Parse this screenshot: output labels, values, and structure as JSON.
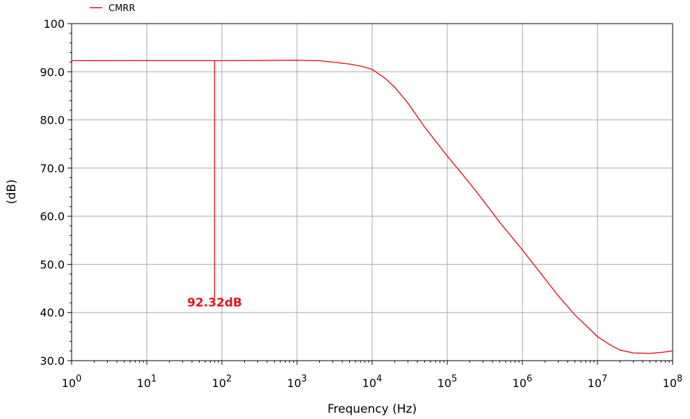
{
  "chart_data": {
    "type": "line",
    "title": "",
    "xlabel": "Frequency (Hz)",
    "ylabel": "(dB)",
    "xscale": "log",
    "xlim": [
      1,
      100000000
    ],
    "ylim": [
      30,
      100
    ],
    "grid": true,
    "legend_position": "top-left",
    "x_tick_labels": [
      {
        "base": "10",
        "exp": "0"
      },
      {
        "base": "10",
        "exp": "1"
      },
      {
        "base": "10",
        "exp": "2"
      },
      {
        "base": "10",
        "exp": "3"
      },
      {
        "base": "10",
        "exp": "4"
      },
      {
        "base": "10",
        "exp": "5"
      },
      {
        "base": "10",
        "exp": "6"
      },
      {
        "base": "10",
        "exp": "7"
      },
      {
        "base": "10",
        "exp": "8"
      }
    ],
    "y_tick_labels": [
      "30.0",
      "40.0",
      "50.0",
      "60.0",
      "70.0",
      "80.0",
      "90.0",
      "100"
    ],
    "y_tick_values": [
      30,
      40,
      50,
      60,
      70,
      80,
      90,
      100
    ],
    "series": [
      {
        "name": "CMRR",
        "color": "#e0141e",
        "x": [
          1,
          10,
          100,
          1000,
          2000,
          3000,
          5000,
          7000,
          10000,
          15000,
          20000,
          30000,
          50000,
          70000,
          100000,
          200000,
          300000,
          500000,
          1000000,
          2000000,
          3000000,
          5000000,
          10000000,
          15000000,
          20000000,
          30000000,
          50000000,
          70000000,
          100000000
        ],
        "y": [
          92.3,
          92.32,
          92.32,
          92.4,
          92.3,
          92.0,
          91.6,
          91.2,
          90.5,
          88.6,
          86.8,
          83.5,
          78.5,
          75.6,
          72.5,
          66.8,
          63.3,
          58.7,
          53.0,
          47.0,
          43.5,
          39.5,
          35.0,
          33.2,
          32.2,
          31.6,
          31.5,
          31.7,
          32.0
        ]
      }
    ],
    "annotations": [
      {
        "label": "92.32dB",
        "x": 80,
        "y": 92.32,
        "color": "#e0141e"
      }
    ]
  }
}
